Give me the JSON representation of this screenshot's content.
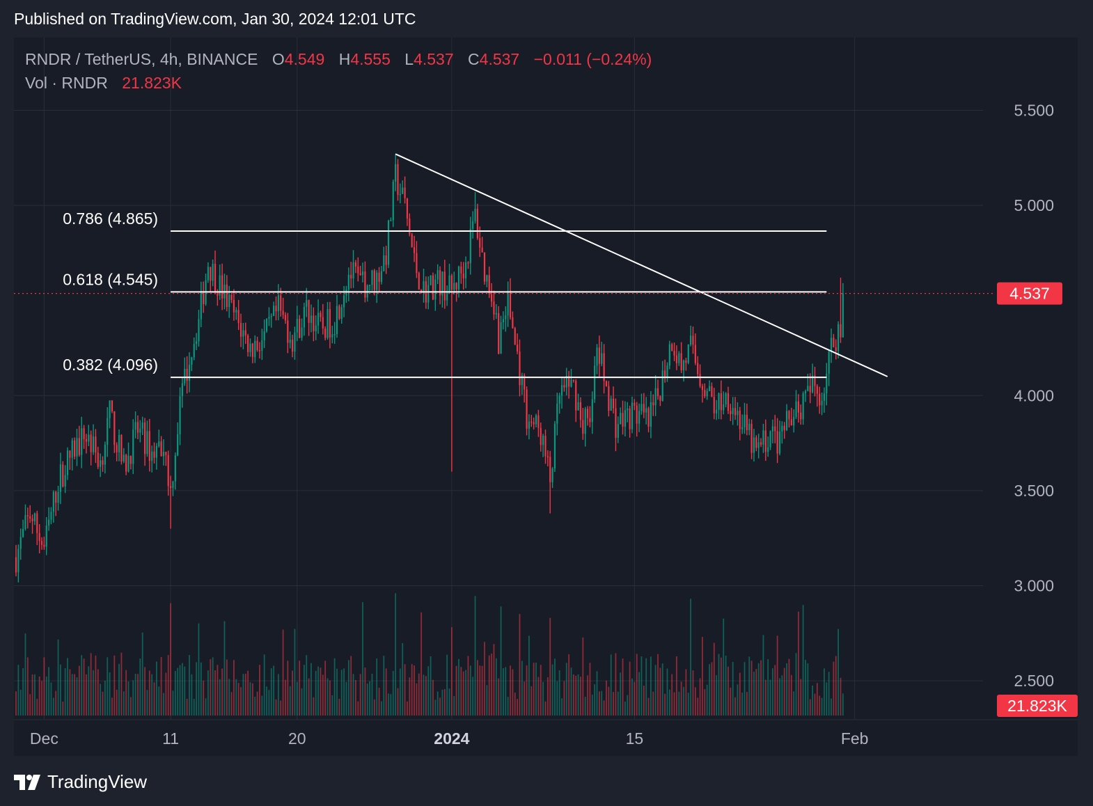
{
  "header": {
    "published": "Published on TradingView.com, Jan 30, 2024 12:01 UTC"
  },
  "legend": {
    "symbol": "RNDR / TetherUS, 4h, BINANCE",
    "o_label": "O",
    "o": "4.549",
    "h_label": "H",
    "h": "4.555",
    "l_label": "L",
    "l": "4.537",
    "c_label": "C",
    "c": "4.537",
    "change": "−0.011 (−0.24%)",
    "vol_label": "Vol · RNDR",
    "vol_value": "21.823K"
  },
  "footer": {
    "brand": "TradingView"
  },
  "colors": {
    "background": "#181c27",
    "grid": "#2a2e39",
    "up": "#089981",
    "down": "#f23645",
    "text": "#b2b5be",
    "lines": "#ffffff"
  },
  "chart_data": {
    "type": "candlestick",
    "interval": "4h",
    "y_axis_ticks": [
      "5.500",
      "5.000",
      "4.000",
      "3.500",
      "3.000",
      "2.500"
    ],
    "ylim": [
      2.25,
      5.85
    ],
    "x_axis_ticks": [
      {
        "label": "Dec",
        "bar": 12,
        "bold": false
      },
      {
        "label": "11",
        "bar": 66,
        "bold": false
      },
      {
        "label": "20",
        "bar": 120,
        "bold": false
      },
      {
        "label": "2024",
        "bar": 186,
        "bold": true
      },
      {
        "label": "15",
        "bar": 264,
        "bold": false
      },
      {
        "label": "Feb",
        "bar": 358,
        "bold": false
      }
    ],
    "last_price": "4.537",
    "last_price_value": 4.537,
    "volume_last": "21.823K",
    "fib_levels": [
      {
        "label": "0.786 (4.865)",
        "value": 4.865
      },
      {
        "label": "0.618 (4.545)",
        "value": 4.545
      },
      {
        "label": "0.382 (4.096)",
        "value": 4.096
      }
    ],
    "fib_x_bar": [
      66,
      346
    ],
    "trendline": {
      "x1": 162,
      "y1": 5.27,
      "x2": 372,
      "y2": 4.1
    },
    "wave_points": [
      [
        0,
        3.15
      ],
      [
        6,
        3.38
      ],
      [
        12,
        3.2
      ],
      [
        18,
        3.55
      ],
      [
        24,
        3.7
      ],
      [
        30,
        3.8
      ],
      [
        36,
        3.65
      ],
      [
        40,
        3.9
      ],
      [
        46,
        3.62
      ],
      [
        52,
        3.82
      ],
      [
        58,
        3.7
      ],
      [
        63,
        3.75
      ],
      [
        66,
        3.5
      ],
      [
        70,
        3.95
      ],
      [
        74,
        4.2
      ],
      [
        78,
        4.4
      ],
      [
        82,
        4.7
      ],
      [
        88,
        4.55
      ],
      [
        94,
        4.4
      ],
      [
        100,
        4.25
      ],
      [
        106,
        4.3
      ],
      [
        112,
        4.45
      ],
      [
        118,
        4.3
      ],
      [
        124,
        4.45
      ],
      [
        130,
        4.35
      ],
      [
        136,
        4.4
      ],
      [
        142,
        4.65
      ],
      [
        148,
        4.58
      ],
      [
        154,
        4.62
      ],
      [
        158,
        4.75
      ],
      [
        162,
        5.15
      ],
      [
        166,
        5.0
      ],
      [
        170,
        4.7
      ],
      [
        174,
        4.55
      ],
      [
        180,
        4.6
      ],
      [
        186,
        4.55
      ],
      [
        192,
        4.7
      ],
      [
        196,
        4.95
      ],
      [
        200,
        4.65
      ],
      [
        204,
        4.5
      ],
      [
        206,
        4.3
      ],
      [
        210,
        4.5
      ],
      [
        214,
        4.2
      ],
      [
        218,
        3.9
      ],
      [
        224,
        3.8
      ],
      [
        228,
        3.55
      ],
      [
        232,
        4.0
      ],
      [
        238,
        4.05
      ],
      [
        242,
        3.85
      ],
      [
        246,
        3.95
      ],
      [
        248,
        4.25
      ],
      [
        252,
        4.05
      ],
      [
        256,
        3.85
      ],
      [
        262,
        3.9
      ],
      [
        266,
        3.9
      ],
      [
        270,
        3.85
      ],
      [
        274,
        4.0
      ],
      [
        280,
        4.3
      ],
      [
        284,
        4.15
      ],
      [
        288,
        4.25
      ],
      [
        292,
        4.1
      ],
      [
        298,
        3.95
      ],
      [
        304,
        4.0
      ],
      [
        310,
        3.85
      ],
      [
        316,
        3.7
      ],
      [
        322,
        3.8
      ],
      [
        326,
        3.75
      ],
      [
        332,
        3.95
      ],
      [
        336,
        3.95
      ],
      [
        340,
        4.05
      ],
      [
        344,
        4.0
      ],
      [
        348,
        4.25
      ],
      [
        352,
        4.38
      ],
      [
        353,
        4.537
      ]
    ],
    "spikes": [
      {
        "bar": 186,
        "low": 3.6
      },
      {
        "bar": 228,
        "low": 3.38
      },
      {
        "bar": 66,
        "low": 3.3
      },
      {
        "bar": 162,
        "high": 5.27
      },
      {
        "bar": 196,
        "high": 5.07
      }
    ]
  }
}
